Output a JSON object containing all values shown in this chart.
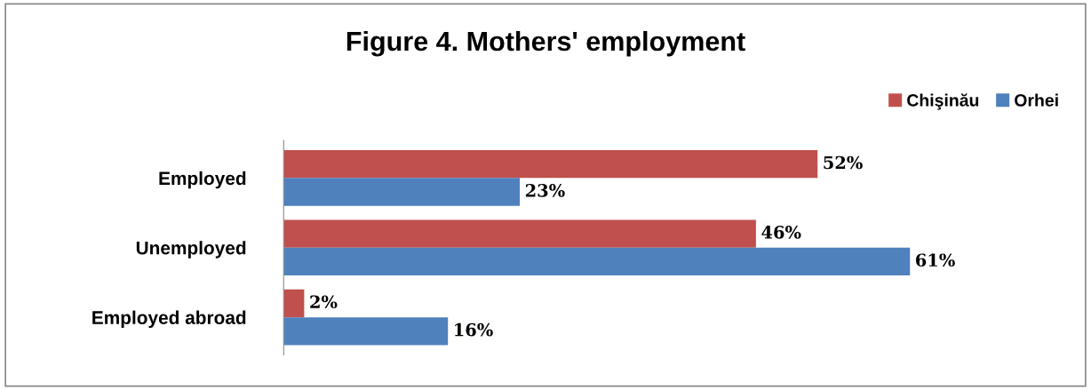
{
  "chart_data": {
    "type": "bar",
    "orientation": "horizontal",
    "title": "Figure 4. Mothers' employment",
    "categories": [
      "Employed",
      "Unemployed",
      "Employed abroad"
    ],
    "series": [
      {
        "name": "Chişinău",
        "color": "#c0504d",
        "values": [
          52,
          46,
          2
        ],
        "value_labels": [
          "52%",
          "46%",
          "2%"
        ]
      },
      {
        "name": "Orhei",
        "color": "#4f81bd",
        "values": [
          23,
          61,
          16
        ],
        "value_labels": [
          "23%",
          "61%",
          "16%"
        ]
      }
    ],
    "legend": "top right",
    "grid": false
  }
}
